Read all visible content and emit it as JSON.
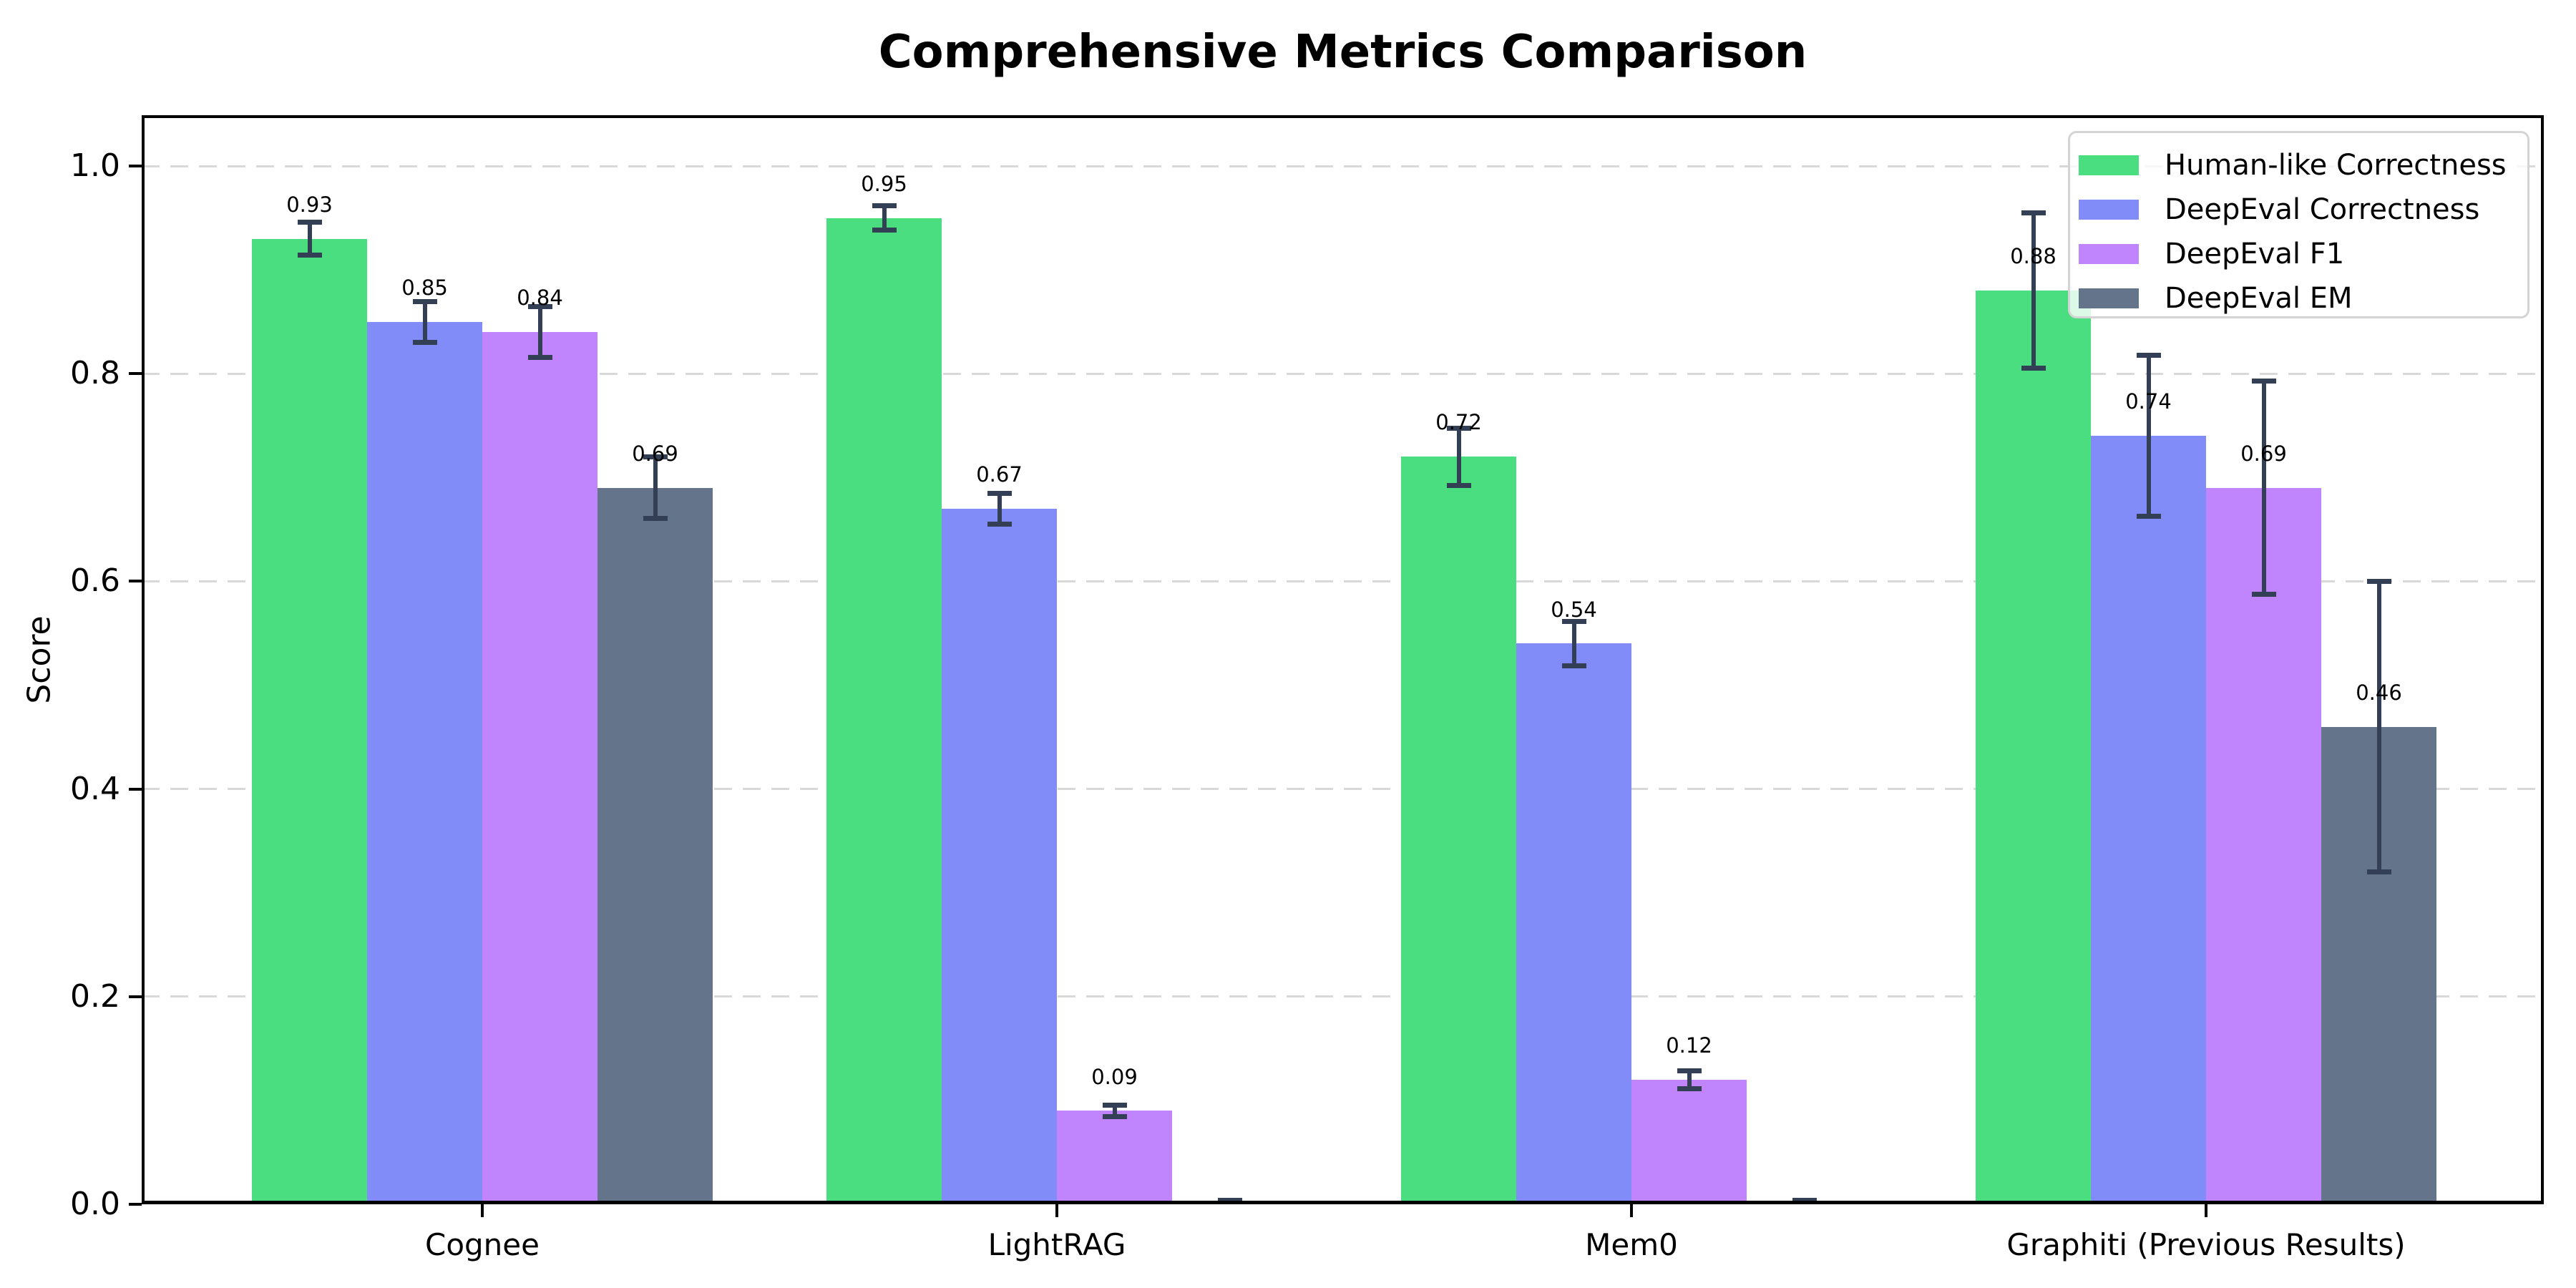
{
  "title": "Comprehensive Metrics Comparison",
  "axes": {
    "ylabel": "Score",
    "ytick_labels": [
      "0.0",
      "0.2",
      "0.4",
      "0.6",
      "0.8",
      "1.0"
    ],
    "xtick_labels": [
      "Cognee",
      "LightRAG",
      "Mem0",
      "Graphiti (Previous Results)"
    ]
  },
  "colors": {
    "human_like_correctness": "#4ade80",
    "deepeval_correctness": "#818cf8",
    "deepeval_f1": "#c084fc",
    "deepeval_em": "#64748b",
    "error_bar": "#333f54",
    "gridline": "#d8d8d8",
    "axis": "#000000",
    "background": "#ffffff"
  },
  "chart_data": {
    "type": "bar",
    "title": "Comprehensive Metrics Comparison",
    "xlabel": "",
    "ylabel": "Score",
    "categories": [
      "Cognee",
      "LightRAG",
      "Mem0",
      "Graphiti (Previous Results)"
    ],
    "series": [
      {
        "name": "Human-like Correctness",
        "color": "#4ade80",
        "values": [
          0.93,
          0.95,
          0.72,
          0.88
        ],
        "errors": [
          0.016,
          0.012,
          0.028,
          0.075
        ]
      },
      {
        "name": "DeepEval Correctness",
        "color": "#818cf8",
        "values": [
          0.85,
          0.67,
          0.54,
          0.74
        ],
        "errors": [
          0.02,
          0.015,
          0.022,
          0.078
        ]
      },
      {
        "name": "DeepEval F1",
        "color": "#c084fc",
        "values": [
          0.84,
          0.09,
          0.12,
          0.69
        ],
        "errors": [
          0.025,
          0.006,
          0.009,
          0.103
        ]
      },
      {
        "name": "DeepEval EM",
        "color": "#64748b",
        "values": [
          0.69,
          0.0,
          0.0,
          0.46
        ],
        "errors": [
          0.03,
          0.004,
          0.004,
          0.14
        ]
      }
    ],
    "bar_value_labels": [
      "0.93",
      "0.85",
      "0.84",
      "0.69",
      "0.95",
      "0.67",
      "0.09",
      "0.72",
      "0.54",
      "0.12",
      "0.88",
      "0.74",
      "0.69",
      "0.46"
    ],
    "yticks": [
      0.0,
      0.2,
      0.4,
      0.6,
      0.8,
      1.0
    ],
    "ylim": [
      0.0,
      1.049
    ],
    "grid": "dashed-horizontal",
    "legend_position": "upper-right",
    "error_bars": true
  }
}
